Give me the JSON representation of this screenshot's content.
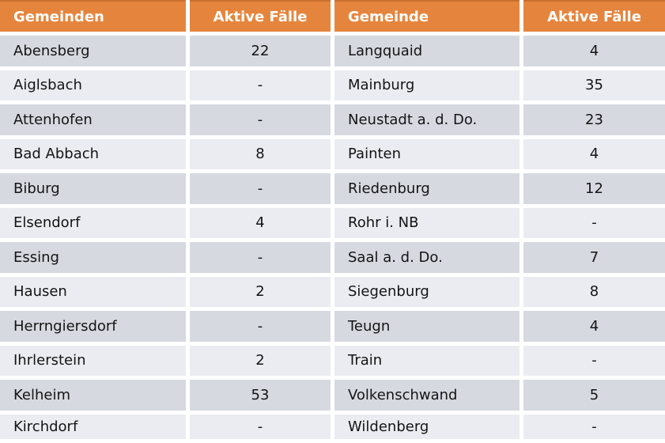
{
  "colors": {
    "header_bg": "#E5853D",
    "header_top_border": "#C8702D",
    "header_text": "#FFFFFF",
    "row_dark": "#D6D9E0",
    "row_light": "#EBECF1",
    "body_text": "#141414",
    "gap": "#FFFFFF"
  },
  "table": {
    "headers": {
      "col1": "Gemeinden",
      "col2": "Aktive Fälle",
      "col3": "Gemeinde",
      "col4": "Aktive Fälle"
    }
  },
  "chart_data": {
    "type": "table",
    "columns": [
      "Gemeinden",
      "Aktive Fälle",
      "Gemeinde",
      "Aktive Fälle"
    ],
    "rows": [
      [
        "Abensberg",
        "22",
        "Langquaid",
        "4"
      ],
      [
        "Aiglsbach",
        "-",
        "Mainburg",
        "35"
      ],
      [
        "Attenhofen",
        "-",
        "Neustadt a. d. Do.",
        "23"
      ],
      [
        "Bad Abbach",
        "8",
        "Painten",
        "4"
      ],
      [
        "Biburg",
        "-",
        "Riedenburg",
        "12"
      ],
      [
        "Elsendorf",
        "4",
        "Rohr i. NB",
        "-"
      ],
      [
        "Essing",
        "-",
        "Saal a. d. Do.",
        "7"
      ],
      [
        "Hausen",
        "2",
        "Siegenburg",
        "8"
      ],
      [
        "Herrngiersdorf",
        "-",
        "Teugn",
        "4"
      ],
      [
        "Ihrlerstein",
        "2",
        "Train",
        "-"
      ],
      [
        "Kelheim",
        "53",
        "Volkenschwand",
        "5"
      ],
      [
        "Kirchdorf",
        "-",
        "Wildenberg",
        "-"
      ]
    ],
    "notes": {
      "row_shading": "odd rows dark (#D6D9E0), even rows light (#EBECF1)",
      "last_row_clipped": "final row is shorter/clipped at bottom edge of image"
    }
  }
}
